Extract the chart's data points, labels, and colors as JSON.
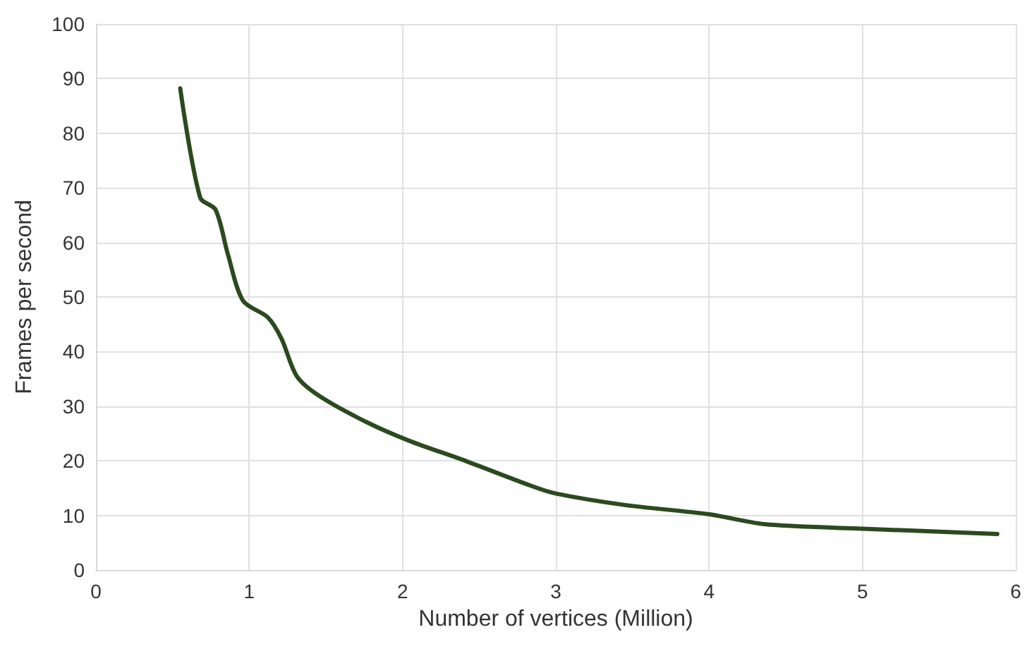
{
  "chart_data": {
    "type": "line",
    "xlabel": "Number of vertices (Million)",
    "ylabel": "Frames per second",
    "x": [
      0.55,
      0.68,
      0.78,
      0.86,
      0.96,
      1.12,
      1.21,
      1.31,
      1.45,
      1.75,
      2.05,
      2.39,
      2.84,
      3.0,
      3.45,
      4.0,
      4.36,
      4.97,
      5.88
    ],
    "series": [
      {
        "color": "#2b4a1f",
        "values": [
          88.2,
          68.2,
          66,
          57.9,
          49.3,
          46.3,
          42.4,
          35.5,
          32,
          27.3,
          23.6,
          20.2,
          15.4,
          14,
          11.9,
          10.2,
          8.4,
          7.6,
          6.6
        ]
      }
    ],
    "xlim": [
      0,
      6
    ],
    "xticks": [
      0,
      1,
      2,
      3,
      4,
      5,
      6
    ],
    "ylim": [
      0,
      100
    ],
    "yticks": [
      0,
      10,
      20,
      30,
      40,
      50,
      60,
      70,
      80,
      90,
      100
    ],
    "grid": true,
    "marker": "none",
    "line_style": "solid"
  }
}
